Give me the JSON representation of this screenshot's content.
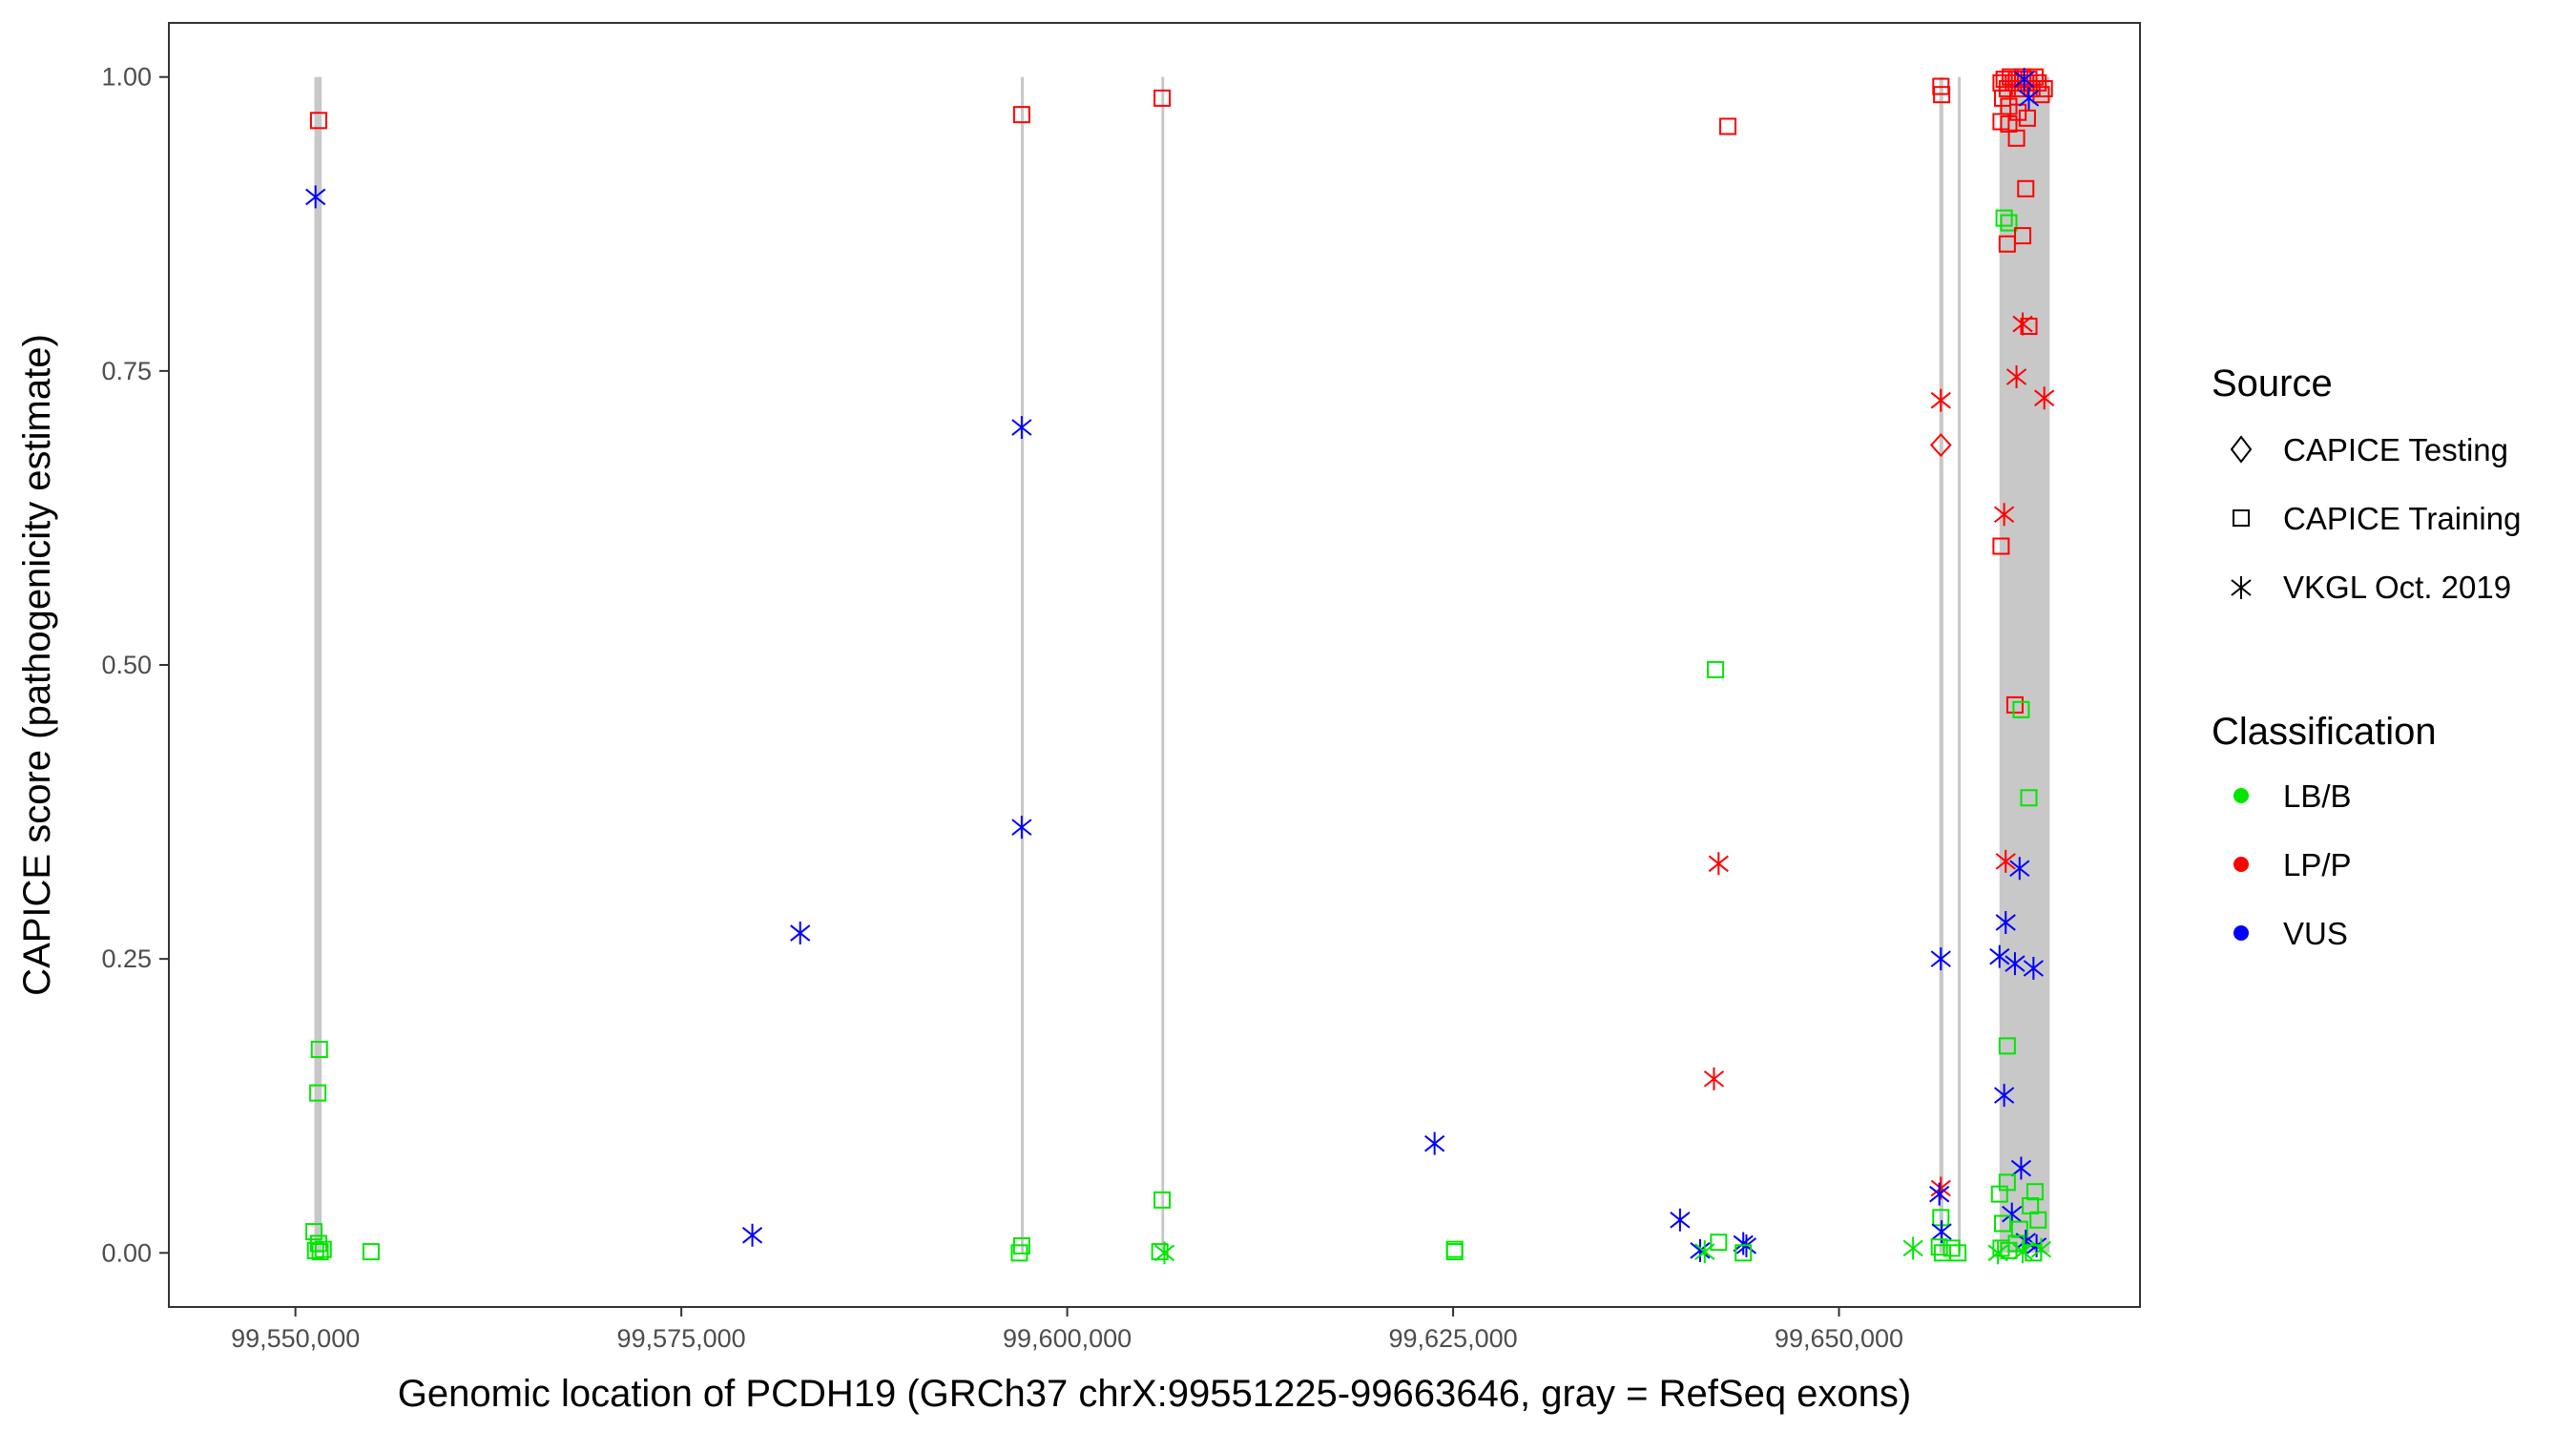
{
  "chart_data": {
    "type": "scatter",
    "title": "",
    "xlabel": "Genomic location of PCDH19 (GRCh37 chrX:99551225-99663646, gray = RefSeq exons)",
    "ylabel": "CAPICE score (pathogenicity estimate)",
    "xlim": [
      99541800,
      99669500
    ],
    "ylim": [
      -0.046,
      1.046
    ],
    "x_ticks": [
      99550000,
      99575000,
      99600000,
      99625000,
      99650000
    ],
    "x_tick_labels": [
      "99,550,000",
      "99,575,000",
      "99,600,000",
      "99,625,000",
      "99,650,000"
    ],
    "y_ticks": [
      0,
      0.25,
      0.5,
      0.75,
      1
    ],
    "y_tick_labels": [
      "0.00",
      "0.25",
      "0.50",
      "0.75",
      "1.00"
    ],
    "grid": false,
    "legend_position": "right",
    "legend": {
      "source_title": "Source",
      "source_items": [
        {
          "label": "CAPICE Testing",
          "shape": "diamond"
        },
        {
          "label": "CAPICE Training",
          "shape": "square"
        },
        {
          "label": "VKGL Oct. 2019",
          "shape": "asterisk"
        }
      ],
      "class_title": "Classification",
      "class_items": [
        {
          "label": "LB/B",
          "color": "#00e600"
        },
        {
          "label": "LP/P",
          "color": "#ff0000"
        },
        {
          "label": "VUS",
          "color": "#0000ff"
        }
      ]
    },
    "exons": [
      {
        "start": 99551225,
        "end": 99551700
      },
      {
        "start": 99597000,
        "end": 99597120
      },
      {
        "start": 99606100,
        "end": 99606200
      },
      {
        "start": 99656500,
        "end": 99656760
      },
      {
        "start": 99657700,
        "end": 99657800
      },
      {
        "start": 99660400,
        "end": 99663646
      }
    ],
    "colors": {
      "exon": "#c8c8c8",
      "LB/B": "#00e600",
      "LP/P": "#ff0000",
      "VUS": "#0000ff"
    },
    "points": [
      {
        "x": 99551500,
        "y": 0.963,
        "source": "CAPICE Training",
        "class": "LP/P"
      },
      {
        "x": 99551300,
        "y": 0.898,
        "source": "VKGL Oct. 2019",
        "class": "VUS"
      },
      {
        "x": 99551550,
        "y": 0.173,
        "source": "CAPICE Training",
        "class": "LB/B"
      },
      {
        "x": 99551450,
        "y": 0.136,
        "source": "CAPICE Training",
        "class": "LB/B"
      },
      {
        "x": 99551200,
        "y": 0.018,
        "source": "CAPICE Training",
        "class": "LB/B"
      },
      {
        "x": 99551500,
        "y": 0.008,
        "source": "CAPICE Training",
        "class": "LB/B"
      },
      {
        "x": 99551300,
        "y": 0.002,
        "source": "CAPICE Training",
        "class": "LB/B"
      },
      {
        "x": 99551600,
        "y": 0.001,
        "source": "CAPICE Training",
        "class": "LB/B"
      },
      {
        "x": 99551800,
        "y": 0.003,
        "source": "CAPICE Training",
        "class": "LB/B"
      },
      {
        "x": 99554900,
        "y": 0.001,
        "source": "CAPICE Training",
        "class": "LB/B"
      },
      {
        "x": 99579600,
        "y": 0.015,
        "source": "VKGL Oct. 2019",
        "class": "VUS"
      },
      {
        "x": 99582700,
        "y": 0.272,
        "source": "VKGL Oct. 2019",
        "class": "VUS"
      },
      {
        "x": 99597050,
        "y": 0.968,
        "source": "CAPICE Training",
        "class": "LP/P"
      },
      {
        "x": 99597050,
        "y": 0.702,
        "source": "VKGL Oct. 2019",
        "class": "VUS"
      },
      {
        "x": 99597050,
        "y": 0.362,
        "source": "VKGL Oct. 2019",
        "class": "VUS"
      },
      {
        "x": 99597050,
        "y": 0.006,
        "source": "CAPICE Training",
        "class": "LB/B"
      },
      {
        "x": 99596900,
        "y": 0.0,
        "source": "CAPICE Training",
        "class": "LB/B"
      },
      {
        "x": 99606150,
        "y": 0.982,
        "source": "CAPICE Training",
        "class": "LP/P"
      },
      {
        "x": 99606150,
        "y": 0.045,
        "source": "CAPICE Training",
        "class": "LB/B"
      },
      {
        "x": 99606000,
        "y": 0.001,
        "source": "CAPICE Training",
        "class": "LB/B"
      },
      {
        "x": 99606300,
        "y": 0.0,
        "source": "VKGL Oct. 2019",
        "class": "LB/B"
      },
      {
        "x": 99623800,
        "y": 0.093,
        "source": "VKGL Oct. 2019",
        "class": "VUS"
      },
      {
        "x": 99625100,
        "y": 0.003,
        "source": "CAPICE Training",
        "class": "LB/B"
      },
      {
        "x": 99625100,
        "y": 0.001,
        "source": "CAPICE Training",
        "class": "LB/B"
      },
      {
        "x": 99639700,
        "y": 0.028,
        "source": "VKGL Oct. 2019",
        "class": "VUS"
      },
      {
        "x": 99641000,
        "y": 0.002,
        "source": "VKGL Oct. 2019",
        "class": "VUS"
      },
      {
        "x": 99641300,
        "y": 0.001,
        "source": "VKGL Oct. 2019",
        "class": "LB/B"
      },
      {
        "x": 99641900,
        "y": 0.148,
        "source": "VKGL Oct. 2019",
        "class": "LP/P"
      },
      {
        "x": 99642000,
        "y": 0.496,
        "source": "CAPICE Training",
        "class": "LB/B"
      },
      {
        "x": 99642200,
        "y": 0.331,
        "source": "VKGL Oct. 2019",
        "class": "LP/P"
      },
      {
        "x": 99642200,
        "y": 0.009,
        "source": "CAPICE Training",
        "class": "LB/B"
      },
      {
        "x": 99642800,
        "y": 0.958,
        "source": "CAPICE Training",
        "class": "LP/P"
      },
      {
        "x": 99643800,
        "y": 0.008,
        "source": "VKGL Oct. 2019",
        "class": "VUS"
      },
      {
        "x": 99644000,
        "y": 0.006,
        "source": "VKGL Oct. 2019",
        "class": "VUS"
      },
      {
        "x": 99643800,
        "y": 0.0,
        "source": "CAPICE Training",
        "class": "LB/B"
      },
      {
        "x": 99654800,
        "y": 0.004,
        "source": "VKGL Oct. 2019",
        "class": "LB/B"
      },
      {
        "x": 99656600,
        "y": 0.992,
        "source": "CAPICE Training",
        "class": "LP/P"
      },
      {
        "x": 99656650,
        "y": 0.985,
        "source": "CAPICE Training",
        "class": "LP/P"
      },
      {
        "x": 99656600,
        "y": 0.725,
        "source": "VKGL Oct. 2019",
        "class": "LP/P"
      },
      {
        "x": 99656600,
        "y": 0.687,
        "source": "CAPICE Testing",
        "class": "LP/P"
      },
      {
        "x": 99656600,
        "y": 0.25,
        "source": "VKGL Oct. 2019",
        "class": "VUS"
      },
      {
        "x": 99656600,
        "y": 0.055,
        "source": "VKGL Oct. 2019",
        "class": "LP/P"
      },
      {
        "x": 99656500,
        "y": 0.05,
        "source": "VKGL Oct. 2019",
        "class": "VUS"
      },
      {
        "x": 99656600,
        "y": 0.03,
        "source": "CAPICE Training",
        "class": "LB/B"
      },
      {
        "x": 99656650,
        "y": 0.018,
        "source": "VKGL Oct. 2019",
        "class": "VUS"
      },
      {
        "x": 99656500,
        "y": 0.005,
        "source": "CAPICE Training",
        "class": "LB/B"
      },
      {
        "x": 99656700,
        "y": 0.0,
        "source": "CAPICE Training",
        "class": "LB/B"
      },
      {
        "x": 99657300,
        "y": 0.004,
        "source": "CAPICE Training",
        "class": "LB/B"
      },
      {
        "x": 99657700,
        "y": 0.0,
        "source": "CAPICE Training",
        "class": "LB/B"
      },
      {
        "x": 99660500,
        "y": 0.995,
        "source": "CAPICE Training",
        "class": "LP/P"
      },
      {
        "x": 99660700,
        "y": 0.998,
        "source": "CAPICE Training",
        "class": "LP/P"
      },
      {
        "x": 99660900,
        "y": 0.99,
        "source": "CAPICE Training",
        "class": "LP/P"
      },
      {
        "x": 99661100,
        "y": 1.0,
        "source": "CAPICE Training",
        "class": "LP/P"
      },
      {
        "x": 99661300,
        "y": 0.995,
        "source": "CAPICE Training",
        "class": "LP/P"
      },
      {
        "x": 99661500,
        "y": 0.998,
        "source": "CAPICE Training",
        "class": "LP/P"
      },
      {
        "x": 99661700,
        "y": 0.99,
        "source": "CAPICE Training",
        "class": "LP/P"
      },
      {
        "x": 99661900,
        "y": 1.0,
        "source": "CAPICE Training",
        "class": "LP/P"
      },
      {
        "x": 99662100,
        "y": 0.995,
        "source": "CAPICE Training",
        "class": "LP/P"
      },
      {
        "x": 99662300,
        "y": 0.998,
        "source": "CAPICE Training",
        "class": "LP/P"
      },
      {
        "x": 99662500,
        "y": 0.99,
        "source": "CAPICE Training",
        "class": "LP/P"
      },
      {
        "x": 99662700,
        "y": 1.0,
        "source": "CAPICE Training",
        "class": "LP/P"
      },
      {
        "x": 99662900,
        "y": 0.995,
        "source": "CAPICE Training",
        "class": "LP/P"
      },
      {
        "x": 99663100,
        "y": 0.985,
        "source": "CAPICE Training",
        "class": "LP/P"
      },
      {
        "x": 99663300,
        "y": 0.99,
        "source": "CAPICE Training",
        "class": "LP/P"
      },
      {
        "x": 99660600,
        "y": 0.982,
        "source": "CAPICE Training",
        "class": "LP/P"
      },
      {
        "x": 99661000,
        "y": 0.975,
        "source": "CAPICE Training",
        "class": "LP/P"
      },
      {
        "x": 99661600,
        "y": 0.97,
        "source": "CAPICE Training",
        "class": "LP/P"
      },
      {
        "x": 99662200,
        "y": 0.965,
        "source": "CAPICE Training",
        "class": "LP/P"
      },
      {
        "x": 99660500,
        "y": 0.962,
        "source": "CAPICE Training",
        "class": "LP/P"
      },
      {
        "x": 99661000,
        "y": 0.96,
        "source": "CAPICE Training",
        "class": "LP/P"
      },
      {
        "x": 99661500,
        "y": 0.948,
        "source": "CAPICE Training",
        "class": "LP/P"
      },
      {
        "x": 99662100,
        "y": 0.905,
        "source": "CAPICE Training",
        "class": "LP/P"
      },
      {
        "x": 99660700,
        "y": 0.88,
        "source": "CAPICE Training",
        "class": "LB/B"
      },
      {
        "x": 99661000,
        "y": 0.876,
        "source": "CAPICE Training",
        "class": "LB/B"
      },
      {
        "x": 99660900,
        "y": 0.858,
        "source": "CAPICE Training",
        "class": "LP/P"
      },
      {
        "x": 99661900,
        "y": 0.865,
        "source": "CAPICE Training",
        "class": "LP/P"
      },
      {
        "x": 99661900,
        "y": 0.79,
        "source": "VKGL Oct. 2019",
        "class": "LP/P"
      },
      {
        "x": 99662300,
        "y": 0.788,
        "source": "CAPICE Training",
        "class": "LP/P"
      },
      {
        "x": 99661500,
        "y": 0.745,
        "source": "VKGL Oct. 2019",
        "class": "LP/P"
      },
      {
        "x": 99663300,
        "y": 0.727,
        "source": "VKGL Oct. 2019",
        "class": "LP/P"
      },
      {
        "x": 99660700,
        "y": 0.628,
        "source": "VKGL Oct. 2019",
        "class": "LP/P"
      },
      {
        "x": 99660500,
        "y": 0.601,
        "source": "CAPICE Training",
        "class": "LP/P"
      },
      {
        "x": 99661400,
        "y": 0.466,
        "source": "CAPICE Training",
        "class": "LP/P"
      },
      {
        "x": 99661800,
        "y": 0.462,
        "source": "CAPICE Training",
        "class": "LB/B"
      },
      {
        "x": 99662300,
        "y": 0.387,
        "source": "CAPICE Training",
        "class": "LB/B"
      },
      {
        "x": 99660800,
        "y": 0.333,
        "source": "VKGL Oct. 2019",
        "class": "LP/P"
      },
      {
        "x": 99661700,
        "y": 0.327,
        "source": "VKGL Oct. 2019",
        "class": "VUS"
      },
      {
        "x": 99660800,
        "y": 0.281,
        "source": "VKGL Oct. 2019",
        "class": "VUS"
      },
      {
        "x": 99660400,
        "y": 0.252,
        "source": "VKGL Oct. 2019",
        "class": "VUS"
      },
      {
        "x": 99661400,
        "y": 0.246,
        "source": "VKGL Oct. 2019",
        "class": "VUS"
      },
      {
        "x": 99662600,
        "y": 0.242,
        "source": "VKGL Oct. 2019",
        "class": "VUS"
      },
      {
        "x": 99660900,
        "y": 0.176,
        "source": "CAPICE Training",
        "class": "LB/B"
      },
      {
        "x": 99660700,
        "y": 0.134,
        "source": "VKGL Oct. 2019",
        "class": "VUS"
      },
      {
        "x": 99661800,
        "y": 0.072,
        "source": "VKGL Oct. 2019",
        "class": "VUS"
      },
      {
        "x": 99660900,
        "y": 0.06,
        "source": "CAPICE Training",
        "class": "LB/B"
      },
      {
        "x": 99662700,
        "y": 0.052,
        "source": "CAPICE Training",
        "class": "LB/B"
      },
      {
        "x": 99660400,
        "y": 0.05,
        "source": "CAPICE Training",
        "class": "LB/B"
      },
      {
        "x": 99662400,
        "y": 0.04,
        "source": "CAPICE Training",
        "class": "LB/B"
      },
      {
        "x": 99661200,
        "y": 0.033,
        "source": "VKGL Oct. 2019",
        "class": "VUS"
      },
      {
        "x": 99662900,
        "y": 0.028,
        "source": "CAPICE Training",
        "class": "LB/B"
      },
      {
        "x": 99660600,
        "y": 0.025,
        "source": "CAPICE Training",
        "class": "LB/B"
      },
      {
        "x": 99661700,
        "y": 0.02,
        "source": "CAPICE Training",
        "class": "LB/B"
      },
      {
        "x": 99662100,
        "y": 0.01,
        "source": "VKGL Oct. 2019",
        "class": "VUS"
      },
      {
        "x": 99661500,
        "y": 0.008,
        "source": "CAPICE Training",
        "class": "LB/B"
      },
      {
        "x": 99662800,
        "y": 0.006,
        "source": "VKGL Oct. 2019",
        "class": "VUS"
      },
      {
        "x": 99660500,
        "y": 0.004,
        "source": "CAPICE Training",
        "class": "LB/B"
      },
      {
        "x": 99661000,
        "y": 0.002,
        "source": "CAPICE Training",
        "class": "LB/B"
      },
      {
        "x": 99661900,
        "y": 0.001,
        "source": "VKGL Oct. 2019",
        "class": "LB/B"
      },
      {
        "x": 99662600,
        "y": 0.0,
        "source": "CAPICE Training",
        "class": "LB/B"
      },
      {
        "x": 99663100,
        "y": 0.003,
        "source": "VKGL Oct. 2019",
        "class": "LB/B"
      },
      {
        "x": 99660300,
        "y": 0.0,
        "source": "VKGL Oct. 2019",
        "class": "LB/B"
      },
      {
        "x": 99662000,
        "y": 0.998,
        "source": "VKGL Oct. 2019",
        "class": "VUS"
      },
      {
        "x": 99662300,
        "y": 0.982,
        "source": "VKGL Oct. 2019",
        "class": "VUS"
      }
    ]
  }
}
